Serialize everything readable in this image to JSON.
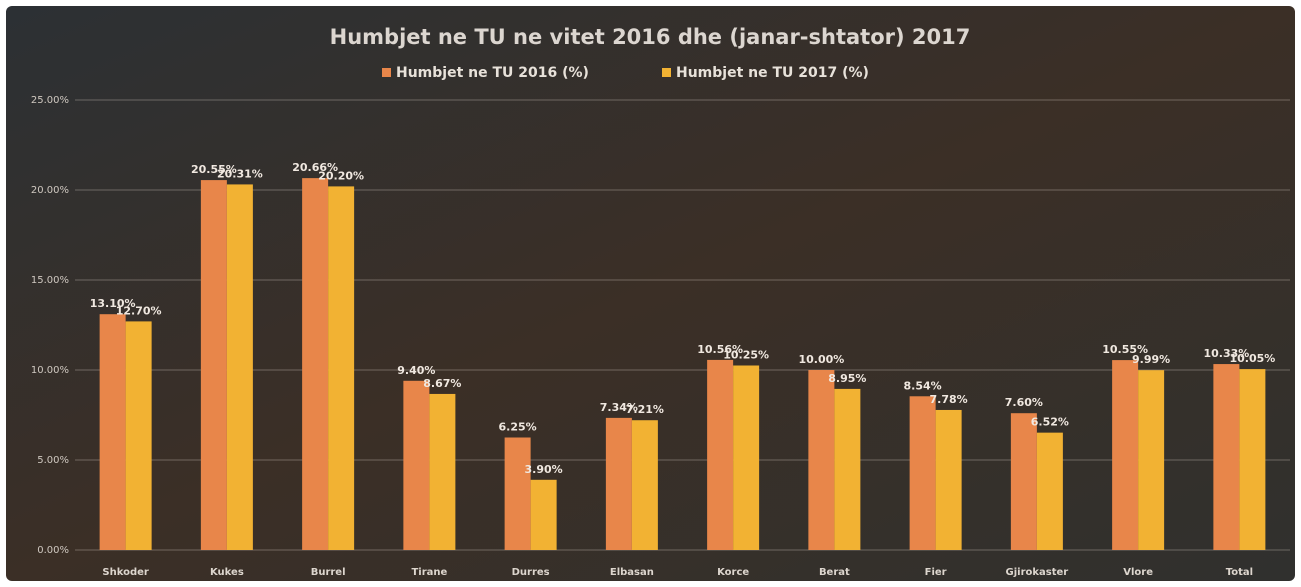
{
  "chart_data": {
    "type": "bar",
    "title": "Humbjet ne TU ne vitet 2016 dhe (janar-shtator) 2017",
    "categories": [
      "Shkoder",
      "Kukes",
      "Burrel",
      "Tirane",
      "Durres",
      "Elbasan",
      "Korce",
      "Berat",
      "Fier",
      "Gjirokaster",
      "Vlore",
      "Total"
    ],
    "series": [
      {
        "name": "Humbjet ne TU 2016 (%)",
        "color": "#e8864a",
        "values": [
          13.1,
          20.55,
          20.66,
          9.4,
          6.25,
          7.34,
          10.56,
          10.0,
          8.54,
          7.6,
          10.55,
          10.33
        ],
        "value_labels": [
          "13.10%",
          "20.55%",
          "20.66%",
          "9.40%",
          "6.25%",
          "7.34%",
          "10.56%",
          "10.00%",
          "8.54%",
          "7.60%",
          "10.55%",
          "10.33%"
        ]
      },
      {
        "name": "Humbjet ne TU 2017 (%)",
        "color": "#f2b233",
        "values": [
          12.7,
          20.31,
          20.2,
          8.67,
          3.9,
          7.21,
          10.25,
          8.95,
          7.78,
          6.52,
          9.99,
          10.05
        ],
        "value_labels": [
          "12.70%",
          "20.31%",
          "20.20%",
          "8.67%",
          "3.90%",
          "7.21%",
          "10.25%",
          "8.95%",
          "7.78%",
          "6.52%",
          "9.99%",
          "10.05%"
        ]
      }
    ],
    "ylim": [
      0,
      25
    ],
    "yticks": [
      {
        "value": 0,
        "label": "0.00%"
      },
      {
        "value": 5,
        "label": "5.00%"
      },
      {
        "value": 10,
        "label": "10.00%"
      },
      {
        "value": 15,
        "label": "15.00%"
      },
      {
        "value": 20,
        "label": "20.00%"
      },
      {
        "value": 25,
        "label": "25.00%"
      }
    ],
    "grid": true,
    "legend": "top"
  }
}
